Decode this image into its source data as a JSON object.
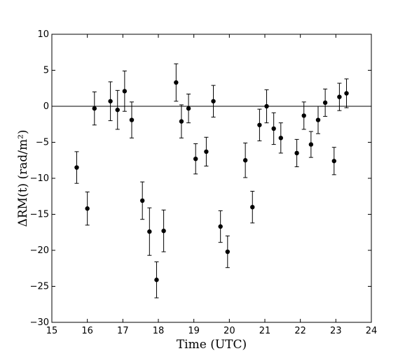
{
  "chart_data": {
    "type": "scatter",
    "xlabel": "Time (UTC)",
    "ylabel": "ΔRM(t) (rad/m²)",
    "xlim": [
      15,
      24
    ],
    "ylim": [
      -30,
      10
    ],
    "xticks": [
      15,
      16,
      17,
      18,
      19,
      20,
      21,
      22,
      23,
      24
    ],
    "yticks": [
      -30,
      -25,
      -20,
      -15,
      -10,
      -5,
      0,
      5,
      10
    ],
    "xtick_labels": [
      "15",
      "16",
      "17",
      "18",
      "19",
      "20",
      "21",
      "22",
      "23",
      "24"
    ],
    "ytick_labels": [
      "−30",
      "−25",
      "−20",
      "−15",
      "−10",
      "−5",
      "0",
      "5",
      "10"
    ],
    "reference_line_y": 0,
    "grid": false,
    "marker_color": "#000000",
    "points": [
      {
        "x": 15.7,
        "y": -8.5,
        "err": 2.2
      },
      {
        "x": 16.0,
        "y": -14.2,
        "err": 2.3
      },
      {
        "x": 16.2,
        "y": -0.3,
        "err": 2.3
      },
      {
        "x": 16.65,
        "y": 0.7,
        "err": 2.7
      },
      {
        "x": 16.85,
        "y": -0.5,
        "err": 2.7
      },
      {
        "x": 17.05,
        "y": 2.1,
        "err": 2.8
      },
      {
        "x": 17.25,
        "y": -1.9,
        "err": 2.5
      },
      {
        "x": 17.55,
        "y": -13.1,
        "err": 2.6
      },
      {
        "x": 17.75,
        "y": -17.4,
        "err": 3.3
      },
      {
        "x": 17.95,
        "y": -24.1,
        "err": 2.5
      },
      {
        "x": 18.15,
        "y": -17.3,
        "err": 2.9
      },
      {
        "x": 18.5,
        "y": 3.3,
        "err": 2.6
      },
      {
        "x": 18.65,
        "y": -2.1,
        "err": 2.3
      },
      {
        "x": 18.85,
        "y": -0.3,
        "err": 2.0
      },
      {
        "x": 19.05,
        "y": -7.3,
        "err": 2.1
      },
      {
        "x": 19.35,
        "y": -6.3,
        "err": 2.0
      },
      {
        "x": 19.55,
        "y": 0.7,
        "err": 2.2
      },
      {
        "x": 19.75,
        "y": -16.7,
        "err": 2.2
      },
      {
        "x": 19.95,
        "y": -20.2,
        "err": 2.2
      },
      {
        "x": 20.45,
        "y": -7.5,
        "err": 2.4
      },
      {
        "x": 20.65,
        "y": -14.0,
        "err": 2.2
      },
      {
        "x": 20.85,
        "y": -2.6,
        "err": 2.2
      },
      {
        "x": 21.05,
        "y": 0.0,
        "err": 2.3
      },
      {
        "x": 21.25,
        "y": -3.1,
        "err": 2.2
      },
      {
        "x": 21.45,
        "y": -4.4,
        "err": 2.1
      },
      {
        "x": 21.9,
        "y": -6.5,
        "err": 1.9
      },
      {
        "x": 22.1,
        "y": -1.3,
        "err": 1.9
      },
      {
        "x": 22.3,
        "y": -5.3,
        "err": 1.8
      },
      {
        "x": 22.5,
        "y": -1.9,
        "err": 1.9
      },
      {
        "x": 22.7,
        "y": 0.5,
        "err": 1.9
      },
      {
        "x": 22.95,
        "y": -7.6,
        "err": 1.9
      },
      {
        "x": 23.1,
        "y": 1.3,
        "err": 1.9
      },
      {
        "x": 23.3,
        "y": 1.8,
        "err": 2.0
      }
    ]
  }
}
